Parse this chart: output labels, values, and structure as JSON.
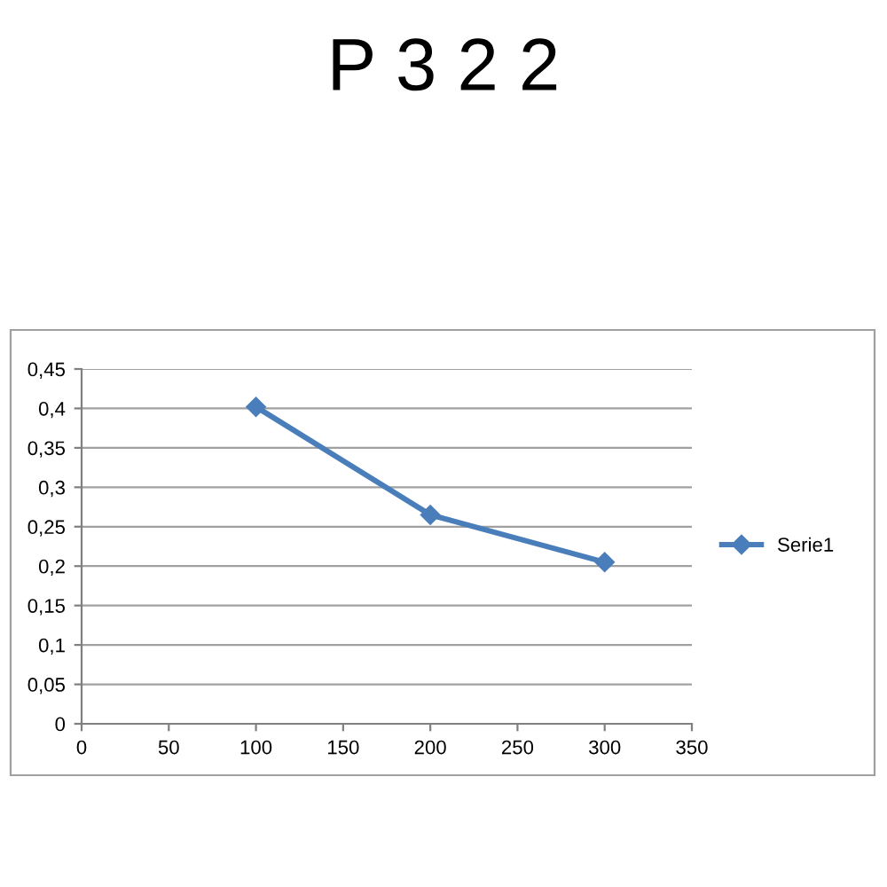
{
  "chart_data": {
    "type": "line",
    "title": "P 3 2 2",
    "x": [
      100,
      200,
      300
    ],
    "series": [
      {
        "name": "Serie1",
        "color": "#4a7ebb",
        "values": [
          0.402,
          0.265,
          0.205
        ]
      }
    ],
    "xlim": [
      0,
      350
    ],
    "xticks": [
      0,
      50,
      100,
      150,
      200,
      250,
      300,
      350
    ],
    "ylim": [
      0,
      0.45
    ],
    "yticks": [
      0,
      {
        "value": 0.05,
        "label": "0,05"
      },
      {
        "value": 0.1,
        "label": "0,1"
      },
      {
        "value": 0.15,
        "label": "0,15"
      },
      {
        "value": 0.2,
        "label": "0,2"
      },
      {
        "value": 0.25,
        "label": "0,25"
      },
      {
        "value": 0.3,
        "label": "0,3"
      },
      {
        "value": 0.35,
        "label": "0,35"
      },
      {
        "value": 0.4,
        "label": "0,4"
      },
      {
        "value": 0.45,
        "label": "0,45"
      }
    ],
    "grid": "y",
    "legend": "right",
    "marker": "diamond",
    "line_style": "solid"
  }
}
